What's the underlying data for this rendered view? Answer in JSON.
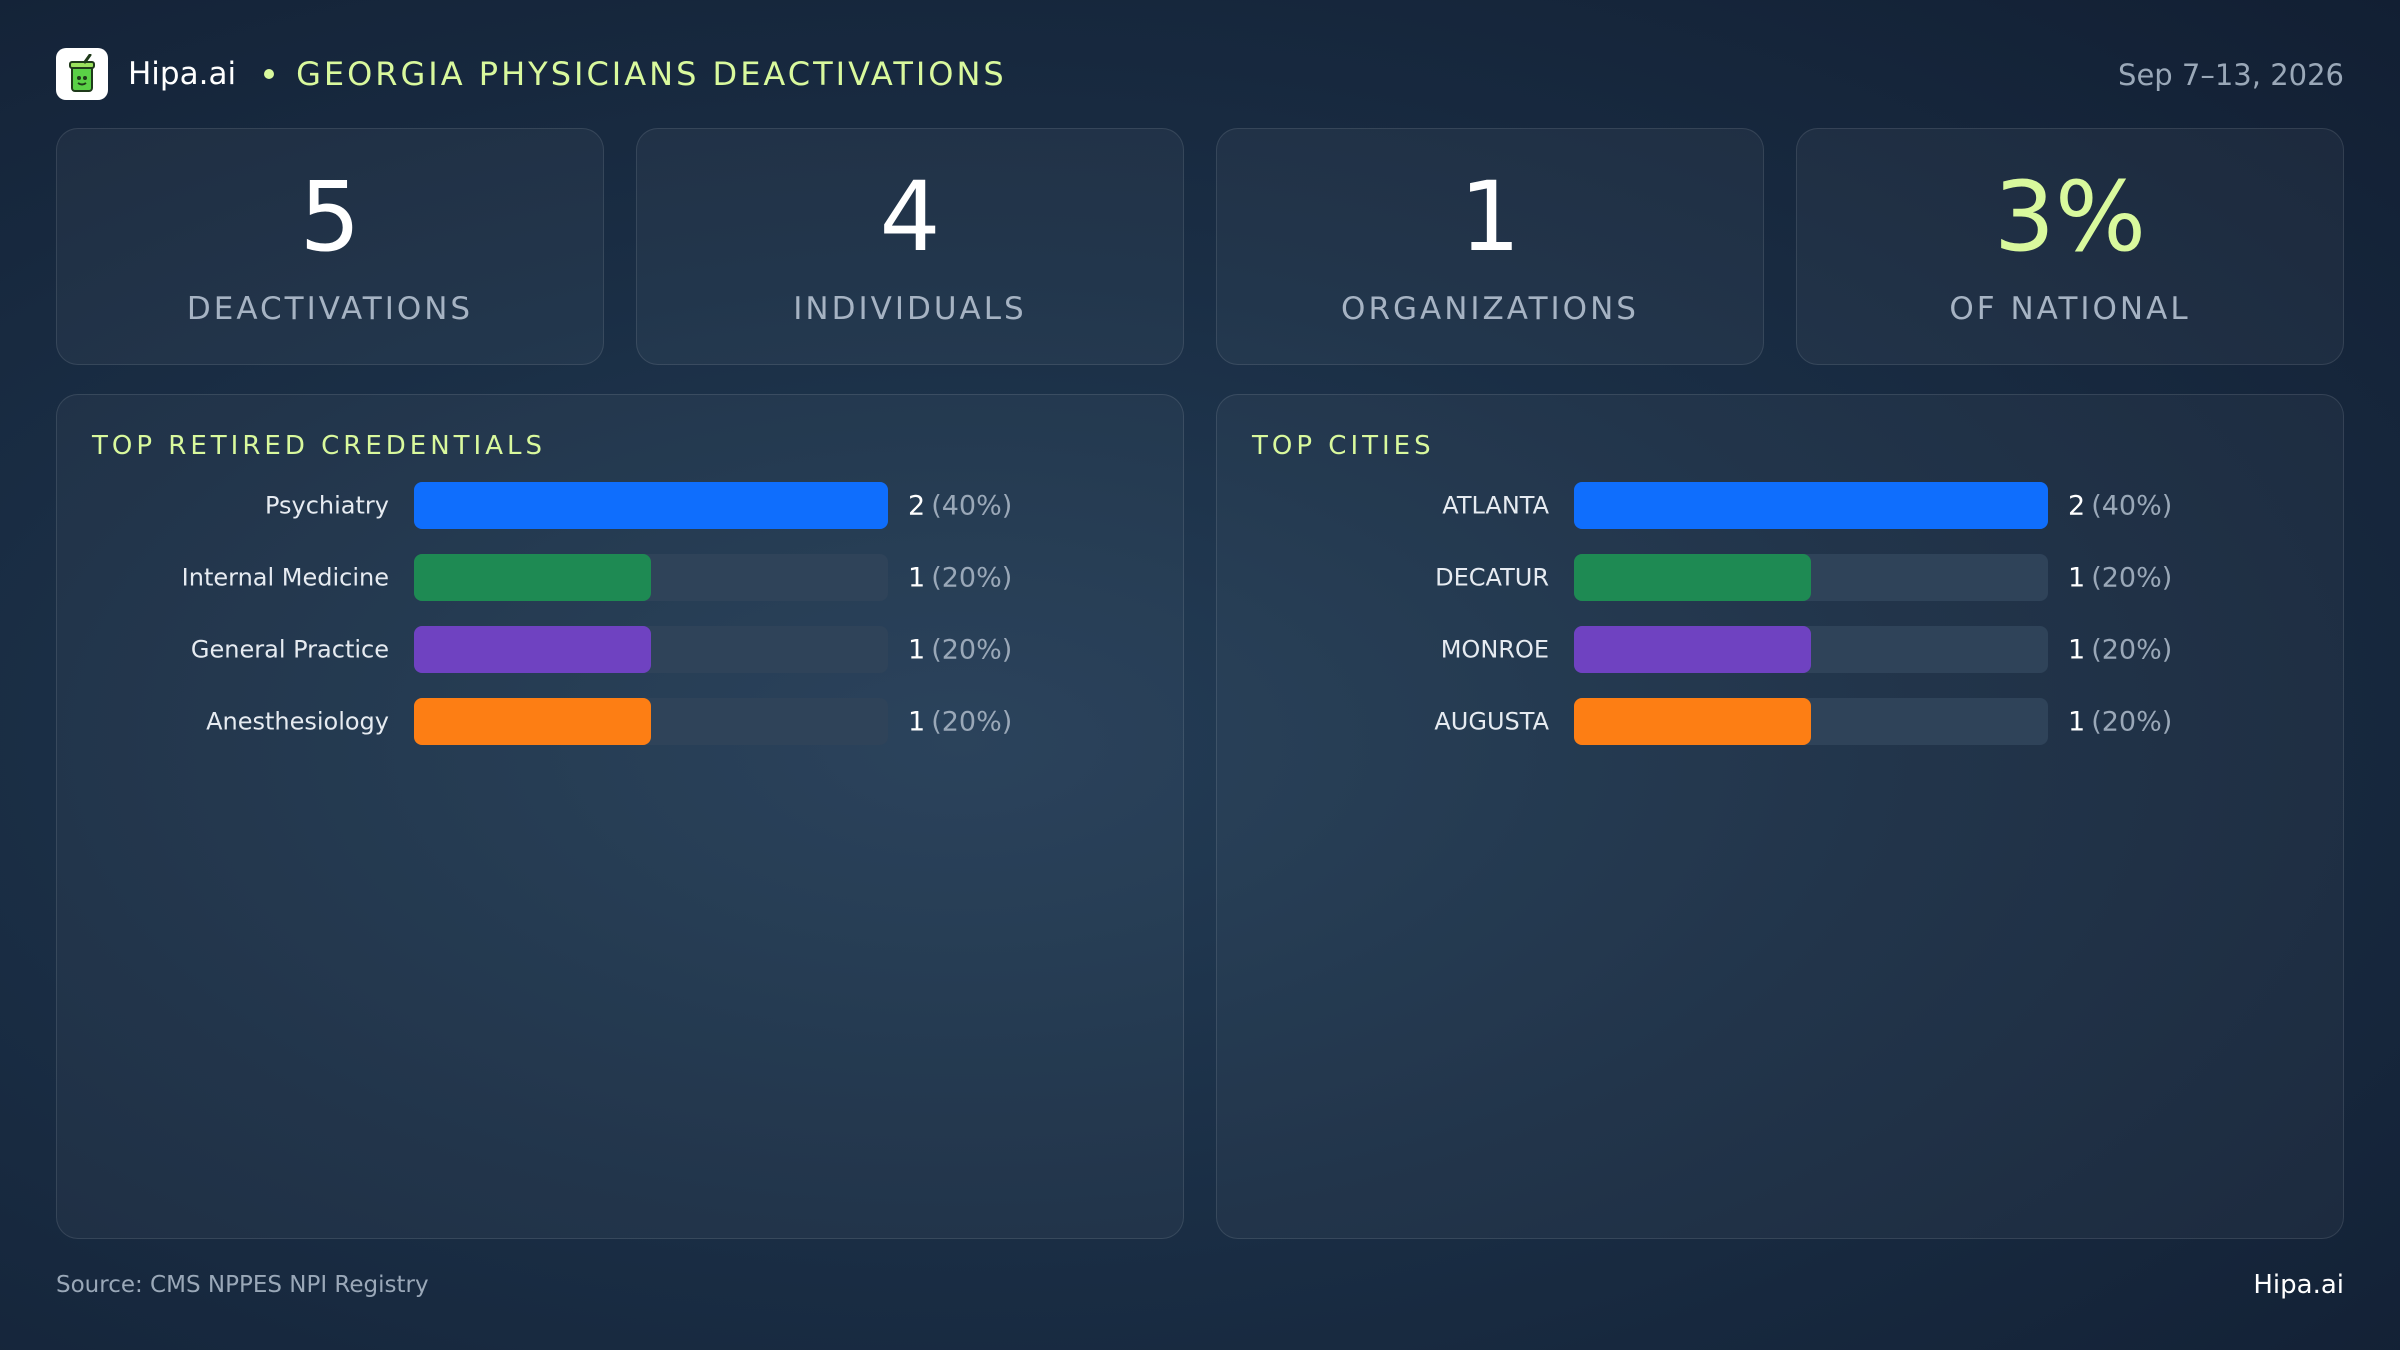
{
  "header": {
    "brand": "Hipa.ai",
    "title": "GEORGIA PHYSICIANS DEACTIVATIONS",
    "date": "Sep 7–13, 2026"
  },
  "stats": [
    {
      "value": "5",
      "label": "DEACTIVATIONS"
    },
    {
      "value": "4",
      "label": "INDIVIDUALS"
    },
    {
      "value": "1",
      "label": "ORGANIZATIONS"
    },
    {
      "value": "3%",
      "label": "OF NATIONAL"
    }
  ],
  "colors": {
    "accent": "#d9f99d",
    "bar_track": "#2f4359",
    "series": [
      "#0f6efd",
      "#1e8a53",
      "#6f42c1",
      "#fd7e14"
    ]
  },
  "chart_data": [
    {
      "type": "bar",
      "orientation": "horizontal",
      "title": "TOP RETIRED CREDENTIALS",
      "categories": [
        "Psychiatry",
        "Internal Medicine",
        "General Practice",
        "Anesthesiology"
      ],
      "values": [
        2,
        1,
        1,
        1
      ],
      "value_labels": [
        "2",
        "1",
        "1",
        "1"
      ],
      "percent_labels": [
        "(40%)",
        "(20%)",
        "(20%)",
        "(20%)"
      ],
      "xlim": [
        0,
        2
      ]
    },
    {
      "type": "bar",
      "orientation": "horizontal",
      "title": "TOP CITIES",
      "categories": [
        "ATLANTA",
        "DECATUR",
        "MONROE",
        "AUGUSTA"
      ],
      "values": [
        2,
        1,
        1,
        1
      ],
      "value_labels": [
        "2",
        "1",
        "1",
        "1"
      ],
      "percent_labels": [
        "(40%)",
        "(20%)",
        "(20%)",
        "(20%)"
      ],
      "xlim": [
        0,
        2
      ]
    }
  ],
  "footer": {
    "source": "Source: CMS NPPES NPI Registry",
    "brand": "Hipa.ai"
  }
}
